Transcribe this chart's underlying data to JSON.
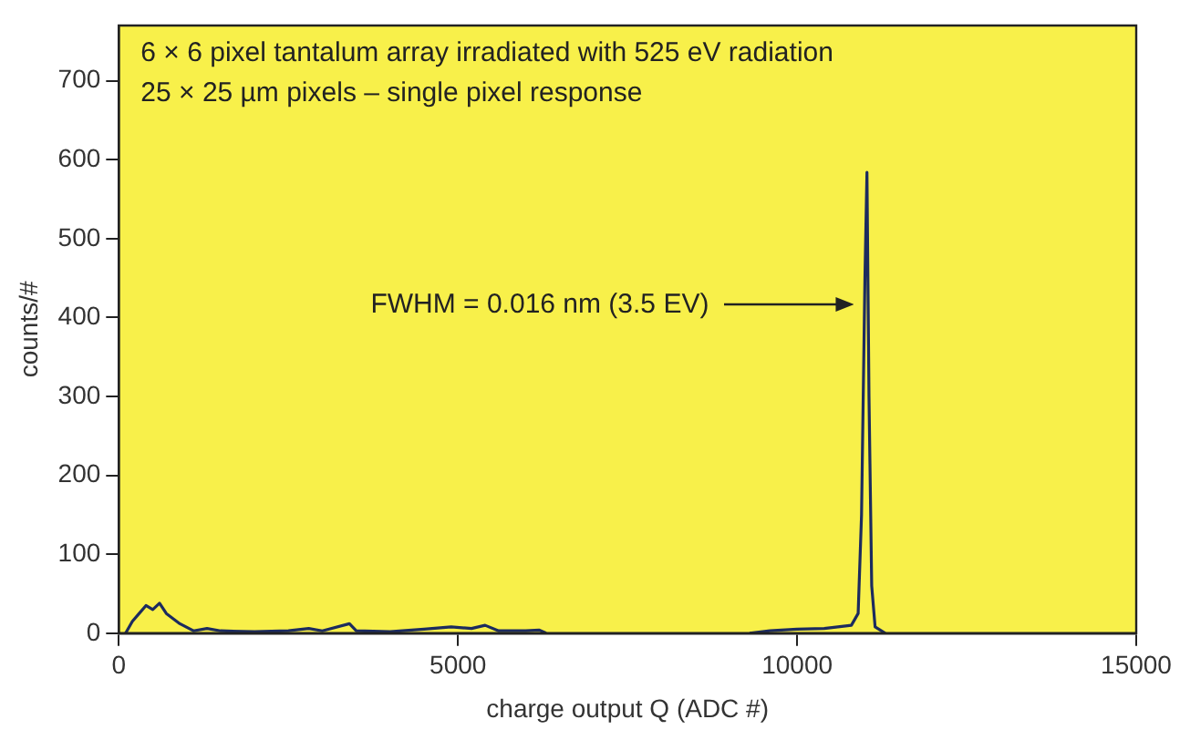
{
  "chart_data": {
    "type": "line",
    "title": "6 × 6 pixel tantalum array irradiated with 525 eV radiation",
    "subtitle": "25 × 25 µm pixels – single pixel response",
    "xlabel": "charge output Q (ADC #)",
    "ylabel": "counts/#",
    "x": [
      100,
      200,
      300,
      400,
      500,
      600,
      700,
      900,
      1100,
      1300,
      1500,
      2000,
      2500,
      2800,
      3000,
      3400,
      3500,
      4000,
      4500,
      4900,
      5200,
      5400,
      5600,
      6000,
      6200,
      6300,
      7800,
      9300,
      9600,
      10000,
      10400,
      10800,
      10900,
      10950,
      11000,
      11030,
      11060,
      11100,
      11150,
      11300
    ],
    "series": [
      {
        "color": "#1c2b5e",
        "values": [
          0,
          15,
          25,
          35,
          30,
          38,
          25,
          12,
          3,
          6,
          3,
          2,
          3,
          6,
          3,
          12,
          3,
          2,
          5,
          8,
          6,
          10,
          3,
          3,
          4,
          0,
          null,
          0,
          3,
          5,
          6,
          10,
          25,
          150,
          450,
          584,
          300,
          60,
          8,
          0
        ]
      }
    ],
    "annotations": [
      "FWHM = 0.016 nm (3.5 EV)"
    ],
    "xlim": [
      0,
      15000
    ],
    "xticks": [
      0,
      5000,
      10000,
      15000
    ],
    "ylim": [
      0,
      770
    ],
    "yticks": [
      0,
      100,
      200,
      300,
      400,
      500,
      600,
      700
    ],
    "grid": false,
    "legend": false,
    "marker": "none",
    "line_style": "solid"
  }
}
